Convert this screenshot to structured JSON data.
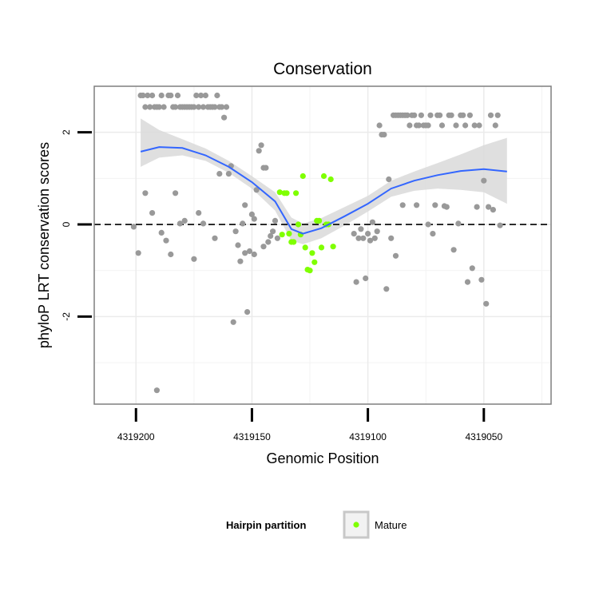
{
  "chart_data": {
    "type": "scatter",
    "title": "Conservation",
    "xlabel": "Genomic Position",
    "ylabel": "phyloP LRT conservation scores",
    "x_reversed": true,
    "xlim": [
      4319218,
      4319021
    ],
    "ylim": [
      -3.9,
      3.0
    ],
    "x_ticks": [
      4319200,
      4319150,
      4319100,
      4319050
    ],
    "x_tick_labels": [
      "4319200",
      "4319150",
      "4319100",
      "4319050"
    ],
    "y_ticks": [
      2,
      0,
      -2
    ],
    "y_tick_labels": [
      "2",
      "0",
      "-2"
    ],
    "grid": true,
    "reference_line": {
      "y": 0,
      "style": "dashed"
    },
    "legend": {
      "title": "Hairpin partition",
      "position": "bottom",
      "entries": [
        {
          "label": "Mature",
          "color": "#7fff00"
        }
      ]
    },
    "colors": {
      "other": "#999999",
      "mature": "#7fff00",
      "smooth": "#3366ff",
      "band": "#d9d9d9"
    },
    "series": [
      {
        "name": "",
        "color": "#999999",
        "points": [
          [
            4319198,
            2.8
          ],
          [
            4319197,
            2.8
          ],
          [
            4319196,
            2.55
          ],
          [
            4319195,
            2.8
          ],
          [
            4319194,
            2.55
          ],
          [
            4319193,
            2.8
          ],
          [
            4319192,
            2.55
          ],
          [
            4319191,
            2.55
          ],
          [
            4319190,
            2.55
          ],
          [
            4319189,
            2.8
          ],
          [
            4319188,
            2.55
          ],
          [
            4319186,
            2.8
          ],
          [
            4319185,
            2.8
          ],
          [
            4319184,
            2.55
          ],
          [
            4319183,
            2.55
          ],
          [
            4319182,
            2.8
          ],
          [
            4319181,
            2.55
          ],
          [
            4319180,
            2.55
          ],
          [
            4319179,
            2.55
          ],
          [
            4319178,
            2.55
          ],
          [
            4319177,
            2.55
          ],
          [
            4319176,
            2.55
          ],
          [
            4319175,
            2.55
          ],
          [
            4319174,
            2.8
          ],
          [
            4319173,
            2.55
          ],
          [
            4319172,
            2.8
          ],
          [
            4319171,
            2.55
          ],
          [
            4319170,
            2.8
          ],
          [
            4319169,
            2.55
          ],
          [
            4319168,
            2.55
          ],
          [
            4319167,
            2.55
          ],
          [
            4319166,
            2.55
          ],
          [
            4319165,
            2.8
          ],
          [
            4319164,
            2.55
          ],
          [
            4319163,
            2.55
          ],
          [
            4319162,
            2.32
          ],
          [
            4319161,
            2.55
          ],
          [
            4319201,
            -0.05
          ],
          [
            4319199,
            -0.62
          ],
          [
            4319196,
            0.68
          ],
          [
            4319193,
            0.25
          ],
          [
            4319191,
            -3.6
          ],
          [
            4319189,
            -0.18
          ],
          [
            4319187,
            -0.35
          ],
          [
            4319185,
            -0.65
          ],
          [
            4319183,
            0.68
          ],
          [
            4319181,
            0.02
          ],
          [
            4319179,
            0.08
          ],
          [
            4319175,
            -0.75
          ],
          [
            4319173,
            0.25
          ],
          [
            4319171,
            0.02
          ],
          [
            4319166,
            -0.3
          ],
          [
            4319164,
            1.1
          ],
          [
            4319160,
            1.1
          ],
          [
            4319159,
            1.27
          ],
          [
            4319158,
            -2.12
          ],
          [
            4319157,
            -0.15
          ],
          [
            4319156,
            -0.45
          ],
          [
            4319155,
            -0.8
          ],
          [
            4319154,
            0.02
          ],
          [
            4319153,
            0.42
          ],
          [
            4319153,
            -0.62
          ],
          [
            4319152,
            -1.9
          ],
          [
            4319151,
            -0.58
          ],
          [
            4319150,
            0.22
          ],
          [
            4319149,
            0.12
          ],
          [
            4319149,
            -0.65
          ],
          [
            4319148,
            0.75
          ],
          [
            4319147,
            1.6
          ],
          [
            4319146,
            1.72
          ],
          [
            4319145,
            1.23
          ],
          [
            4319144,
            1.23
          ],
          [
            4319145,
            -0.48
          ],
          [
            4319143,
            -0.38
          ],
          [
            4319142,
            -0.25
          ],
          [
            4319141,
            -0.15
          ],
          [
            4319140,
            0.08
          ],
          [
            4319139,
            -0.3
          ],
          [
            4319106,
            -0.2
          ],
          [
            4319105,
            -1.25
          ],
          [
            4319104,
            -0.3
          ],
          [
            4319103,
            -0.1
          ],
          [
            4319102,
            -0.3
          ],
          [
            4319101,
            -1.17
          ],
          [
            4319100,
            -0.2
          ],
          [
            4319099,
            -0.35
          ],
          [
            4319098,
            0.05
          ],
          [
            4319097,
            -0.3
          ],
          [
            4319096,
            -0.15
          ],
          [
            4319095,
            2.15
          ],
          [
            4319094,
            1.95
          ],
          [
            4319093,
            1.95
          ],
          [
            4319092,
            -1.4
          ],
          [
            4319091,
            0.98
          ],
          [
            4319090,
            -0.3
          ],
          [
            4319089,
            2.37
          ],
          [
            4319088,
            2.37
          ],
          [
            4319087,
            2.37
          ],
          [
            4319086,
            2.37
          ],
          [
            4319088,
            -0.68
          ],
          [
            4319085,
            2.37
          ],
          [
            4319084,
            2.37
          ],
          [
            4319083,
            2.37
          ],
          [
            4319082,
            2.15
          ],
          [
            4319081,
            2.37
          ],
          [
            4319085,
            0.42
          ],
          [
            4319080,
            2.37
          ],
          [
            4319079,
            2.15
          ],
          [
            4319078,
            2.15
          ],
          [
            4319077,
            2.37
          ],
          [
            4319076,
            2.15
          ],
          [
            4319075,
            2.15
          ],
          [
            4319074,
            2.15
          ],
          [
            4319073,
            2.37
          ],
          [
            4319079,
            0.42
          ],
          [
            4319074,
            0.0
          ],
          [
            4319072,
            -0.2
          ],
          [
            4319071,
            0.42
          ],
          [
            4319070,
            2.37
          ],
          [
            4319069,
            2.37
          ],
          [
            4319068,
            2.15
          ],
          [
            4319067,
            0.4
          ],
          [
            4319066,
            0.38
          ],
          [
            4319065,
            2.37
          ],
          [
            4319064,
            2.37
          ],
          [
            4319063,
            -0.55
          ],
          [
            4319062,
            2.15
          ],
          [
            4319061,
            0.02
          ],
          [
            4319060,
            2.37
          ],
          [
            4319059,
            2.37
          ],
          [
            4319058,
            2.15
          ],
          [
            4319057,
            -1.25
          ],
          [
            4319056,
            2.37
          ],
          [
            4319055,
            -0.95
          ],
          [
            4319054,
            2.15
          ],
          [
            4319053,
            0.38
          ],
          [
            4319052,
            2.15
          ],
          [
            4319051,
            -1.2
          ],
          [
            4319050,
            0.95
          ],
          [
            4319049,
            -1.72
          ],
          [
            4319048,
            0.38
          ],
          [
            4319047,
            2.37
          ],
          [
            4319046,
            0.32
          ],
          [
            4319045,
            2.15
          ],
          [
            4319044,
            2.37
          ],
          [
            4319043,
            -0.02
          ]
        ]
      },
      {
        "name": "Mature",
        "color": "#7fff00",
        "points": [
          [
            4319138,
            0.7
          ],
          [
            4319137,
            -0.22
          ],
          [
            4319136,
            0.68
          ],
          [
            4319135,
            0.68
          ],
          [
            4319134,
            -0.2
          ],
          [
            4319133,
            -0.38
          ],
          [
            4319132,
            -0.38
          ],
          [
            4319131,
            0.68
          ],
          [
            4319130,
            0.0
          ],
          [
            4319129,
            -0.22
          ],
          [
            4319128,
            1.05
          ],
          [
            4319127,
            -0.5
          ],
          [
            4319126,
            -0.98
          ],
          [
            4319125,
            -1.0
          ],
          [
            4319124,
            -0.62
          ],
          [
            4319123,
            -0.82
          ],
          [
            4319122,
            0.08
          ],
          [
            4319121,
            0.08
          ],
          [
            4319120,
            -0.5
          ],
          [
            4319119,
            1.05
          ],
          [
            4319118,
            0.0
          ],
          [
            4319117,
            0.0
          ],
          [
            4319116,
            0.98
          ],
          [
            4319115,
            -0.48
          ]
        ]
      }
    ],
    "smooth": {
      "x": [
        4319198,
        4319190,
        4319180,
        4319170,
        4319160,
        4319150,
        4319140,
        4319133,
        4319128,
        4319120,
        4319110,
        4319100,
        4319090,
        4319080,
        4319070,
        4319060,
        4319050,
        4319040
      ],
      "y": [
        1.58,
        1.68,
        1.66,
        1.5,
        1.25,
        0.92,
        0.5,
        -0.1,
        -0.2,
        -0.08,
        0.18,
        0.45,
        0.78,
        0.95,
        1.07,
        1.16,
        1.2,
        1.15
      ],
      "lower": [
        1.25,
        1.45,
        1.5,
        1.38,
        1.12,
        0.78,
        0.3,
        -0.35,
        -0.43,
        -0.3,
        -0.02,
        0.28,
        0.6,
        0.73,
        0.78,
        0.75,
        0.7,
        0.45
      ],
      "upper": [
        2.3,
        2.05,
        1.85,
        1.65,
        1.38,
        1.05,
        0.7,
        0.15,
        0.02,
        0.14,
        0.38,
        0.62,
        0.95,
        1.15,
        1.33,
        1.52,
        1.72,
        1.88
      ]
    }
  }
}
